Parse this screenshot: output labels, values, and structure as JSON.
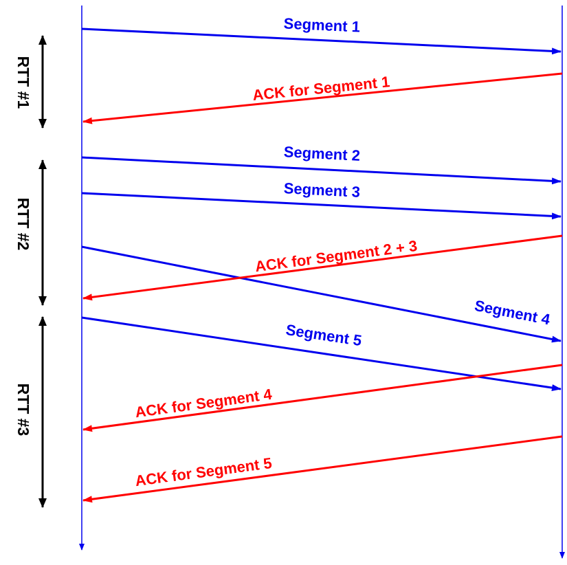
{
  "colors": {
    "data": "#0000ee",
    "ack": "#ff0000",
    "rtt": "#000000",
    "timeline": "#0000ee"
  },
  "messages": [
    {
      "id": "seg1",
      "kind": "data",
      "label": "Segment 1"
    },
    {
      "id": "ack1",
      "kind": "ack",
      "label": "ACK for Segment 1"
    },
    {
      "id": "seg2",
      "kind": "data",
      "label": "Segment 2"
    },
    {
      "id": "seg3",
      "kind": "data",
      "label": "Segment 3"
    },
    {
      "id": "seg4",
      "kind": "data",
      "label": "Segment 4"
    },
    {
      "id": "ack23",
      "kind": "ack",
      "label": "ACK for Segment 2 + 3"
    },
    {
      "id": "seg5",
      "kind": "data",
      "label": "Segment 5"
    },
    {
      "id": "ack4",
      "kind": "ack",
      "label": "ACK for Segment 4"
    },
    {
      "id": "ack5",
      "kind": "ack",
      "label": "ACK for Segment 5"
    }
  ],
  "rtt_labels": [
    "RTT #1",
    "RTT #2",
    "RTT #3"
  ]
}
